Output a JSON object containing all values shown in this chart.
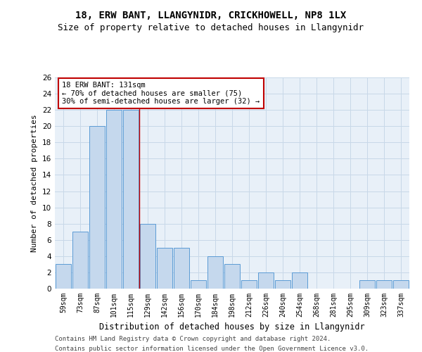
{
  "title1": "18, ERW BANT, LLANGYNIDR, CRICKHOWELL, NP8 1LX",
  "title2": "Size of property relative to detached houses in Llangynidr",
  "xlabel": "Distribution of detached houses by size in Llangynidr",
  "ylabel": "Number of detached properties",
  "categories": [
    "59sqm",
    "73sqm",
    "87sqm",
    "101sqm",
    "115sqm",
    "129sqm",
    "142sqm",
    "156sqm",
    "170sqm",
    "184sqm",
    "198sqm",
    "212sqm",
    "226sqm",
    "240sqm",
    "254sqm",
    "268sqm",
    "281sqm",
    "295sqm",
    "309sqm",
    "323sqm",
    "337sqm"
  ],
  "values": [
    3,
    7,
    20,
    22,
    22,
    8,
    5,
    5,
    1,
    4,
    3,
    1,
    2,
    1,
    2,
    0,
    0,
    0,
    1,
    1,
    1
  ],
  "bar_color": "#c5d8ed",
  "bar_edgecolor": "#5b9bd5",
  "vline_pos": 4.5,
  "vline_color": "#c00000",
  "annotation_text": "18 ERW BANT: 131sqm\n← 70% of detached houses are smaller (75)\n30% of semi-detached houses are larger (32) →",
  "annotation_box_color": "#c00000",
  "ylim": [
    0,
    26
  ],
  "yticks": [
    0,
    2,
    4,
    6,
    8,
    10,
    12,
    14,
    16,
    18,
    20,
    22,
    24,
    26
  ],
  "footer1": "Contains HM Land Registry data © Crown copyright and database right 2024.",
  "footer2": "Contains public sector information licensed under the Open Government Licence v3.0.",
  "background_color": "#ffffff",
  "grid_color": "#c8d8e8",
  "ax_bg_color": "#e8f0f8"
}
